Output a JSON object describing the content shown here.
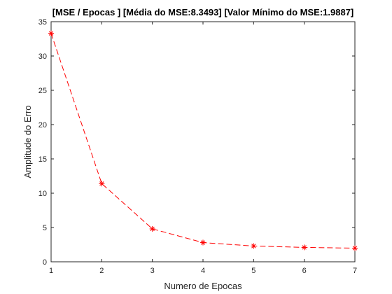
{
  "chart_data": {
    "type": "line",
    "title": "[MSE / Epocas ]  [Média do MSE:8.3493]  [Valor Mínimo do MSE:1.9887]",
    "xlabel": "Numero de Epocas",
    "ylabel": "Amplitude do Erro",
    "xlim": [
      1,
      7
    ],
    "ylim": [
      0,
      35
    ],
    "xticks": [
      1,
      2,
      3,
      4,
      5,
      6,
      7
    ],
    "yticks": [
      0,
      5,
      10,
      15,
      20,
      25,
      30,
      35
    ],
    "grid": false,
    "series": [
      {
        "x": [
          1,
          2,
          3,
          4,
          5,
          6,
          7
        ],
        "values": [
          33.3,
          11.4,
          4.8,
          2.8,
          2.3,
          2.1,
          1.9887
        ],
        "color": "#ff0000",
        "line_style": "dashed",
        "marker": "asterisk"
      }
    ]
  }
}
